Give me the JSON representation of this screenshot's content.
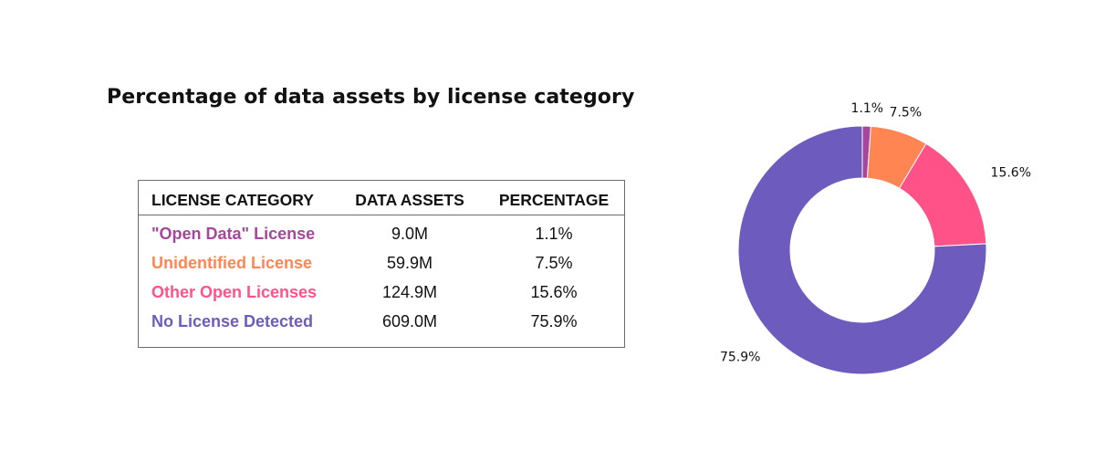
{
  "title": "Percentage of data assets by license category",
  "table": {
    "headers": {
      "category": "LICENSE CATEGORY",
      "assets": "DATA ASSETS",
      "percentage": "PERCENTAGE"
    },
    "rows": [
      {
        "category": "\"Open Data\" License",
        "assets": "9.0M",
        "percentage": "1.1%",
        "color": "#a5479a"
      },
      {
        "category": "Unidentified License",
        "assets": "59.9M",
        "percentage": "7.5%",
        "color": "#ff8552"
      },
      {
        "category": "Other Open Licenses",
        "assets": "124.9M",
        "percentage": "15.6%",
        "color": "#ff5289"
      },
      {
        "category": "No License Detected",
        "assets": "609.0M",
        "percentage": "75.9%",
        "color": "#6d5bbd"
      }
    ]
  },
  "chart_data": {
    "type": "pie",
    "variant": "donut",
    "title": "Percentage of data assets by license category",
    "categories": [
      "\"Open Data\" License",
      "Unidentified License",
      "Other Open Licenses",
      "No License Detected"
    ],
    "values": [
      1.1,
      7.5,
      15.6,
      75.9
    ],
    "labels": [
      "1.1%",
      "7.5%",
      "15.6%",
      "75.9%"
    ],
    "colors": [
      "#a5479a",
      "#ff8552",
      "#ff5289",
      "#6d5bbd"
    ],
    "start": "top",
    "direction": "clockwise"
  }
}
